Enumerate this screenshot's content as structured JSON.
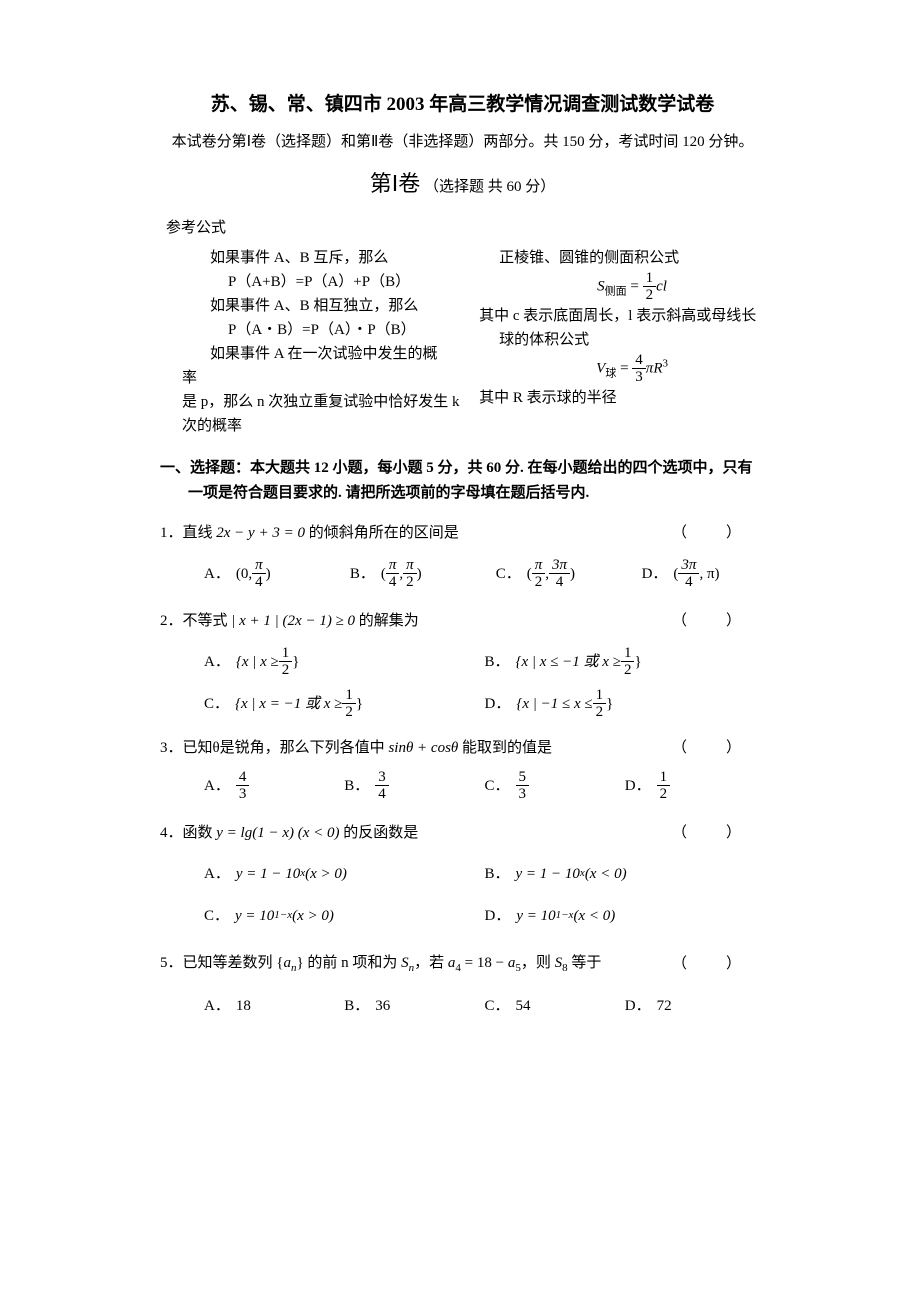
{
  "header": {
    "title": "苏、锡、常、镇四市 2003 年高三教学情况调查测试数学试卷",
    "subtitle": "本试卷分第Ⅰ卷（选择题）和第Ⅱ卷（非选择题）两部分。共 150 分，考试时间 120 分钟。",
    "section_big": "第Ⅰ卷",
    "section_small": "（选择题 共 60 分）"
  },
  "refs": {
    "label": "参考公式",
    "left": {
      "l1": "如果事件 A、B 互斥，那么",
      "l2": "P（A+B）=P（A）+P（B）",
      "l3": "如果事件 A、B 相互独立，那么",
      "l4": "P（A・B）=P（A）・P（B）",
      "l5a": "如果事件 A 在一次试验中发生的概",
      "l5b": "率",
      "l6": "是 p，那么 n 次独立重复试验中恰好发生 k",
      "l7": "次的概率"
    },
    "right": {
      "r1": "正棱锥、圆锥的侧面积公式",
      "r2_S": "S",
      "r2_sub": "侧面",
      "r2_eq": " = ",
      "r2_num": "1",
      "r2_den": "2",
      "r2_tail": "cl",
      "r3": "其中 c 表示底面周长，l 表示斜高或母线长",
      "r4": "球的体积公式",
      "r5_V": "V",
      "r5_sub": "球",
      "r5_eq": " = ",
      "r5_num": "4",
      "r5_den": "3",
      "r5_pi": "π",
      "r5_R": "R",
      "r5_sup": "3",
      "r6": "其中 R 表示球的半径"
    }
  },
  "instruct": {
    "l1": "一、选择题：本大题共 12 小题，每小题 5 分，共 60 分. 在每小题给出的四个选项中，只有",
    "l2": "一项是符合题目要求的. 请把所选项前的字母填在题后括号内."
  },
  "q1": {
    "stem_pre": "1．直线 ",
    "stem_math": "2x − y + 3 = 0",
    "stem_post": " 的倾斜角所在的区间是",
    "A_pre": "(0, ",
    "A_num": "π",
    "A_den": "4",
    "A_post": ")",
    "B_pre": "(",
    "B_num1": "π",
    "B_den1": "4",
    "B_mid": ", ",
    "B_num2": "π",
    "B_den2": "2",
    "B_post": ")",
    "C_pre": "(",
    "C_num1": "π",
    "C_den1": "2",
    "C_mid": ", ",
    "C_num2": "3π",
    "C_den2": "4",
    "C_post": ")",
    "D_pre": "(",
    "D_num": "3π",
    "D_den": "4",
    "D_post": ", π)"
  },
  "q2": {
    "stem_pre": "2．不等式 ",
    "stem_math": "| x + 1 | (2x − 1) ≥ 0",
    "stem_post": " 的解集为",
    "A_pre": "{x | x ≥ ",
    "A_num": "1",
    "A_den": "2",
    "A_post": "}",
    "B_pre": "{x | x ≤ −1 或 x ≥ ",
    "B_num": "1",
    "B_den": "2",
    "B_post": "}",
    "C_pre": "{x | x = −1 或 x ≥ ",
    "C_num": "1",
    "C_den": "2",
    "C_post": "}",
    "D_pre": "{x | −1 ≤ x ≤ ",
    "D_num": "1",
    "D_den": "2",
    "D_post": "}"
  },
  "q3": {
    "stem_pre": "3．已知θ是锐角，那么下列各值中 ",
    "stem_math": "sinθ + cosθ",
    "stem_post": " 能取到的值是",
    "A_num": "4",
    "A_den": "3",
    "B_num": "3",
    "B_den": "4",
    "C_num": "5",
    "C_den": "3",
    "D_num": "1",
    "D_den": "2"
  },
  "q4": {
    "stem_pre": "4．函数 ",
    "stem_math": "y = lg(1 − x) (x < 0)",
    "stem_post": " 的反函数是",
    "A": "y = 1 − 10",
    "A_sup": "x",
    "A_post": " (x > 0)",
    "B": "y = 1 − 10",
    "B_sup": "x",
    "B_post": " (x < 0)",
    "C": "y = 10",
    "C_sup": "1−x",
    "C_post": " (x > 0)",
    "D": "y = 10",
    "D_sup": "1−x",
    "D_post": " (x < 0)"
  },
  "q5": {
    "stem_pre": "5．已知等差数列 {",
    "stem_a": "a",
    "stem_n": "n",
    "stem_mid1": "} 的前 n 项和为 ",
    "stem_S": "S",
    "stem_Sn": "n",
    "stem_mid2": "，若 ",
    "stem_a4a": "a",
    "stem_a4n": "4",
    "stem_eq": " = 18 − ",
    "stem_a5a": "a",
    "stem_a5n": "5",
    "stem_mid3": "，则 ",
    "stem_S8S": "S",
    "stem_S8n": "8",
    "stem_post": " 等于",
    "A": "18",
    "B": "36",
    "C": "54",
    "D": "72"
  },
  "labels": {
    "A": "A．",
    "B": "B．",
    "C": "C．",
    "D": "D．",
    "bracket": "（　）"
  }
}
